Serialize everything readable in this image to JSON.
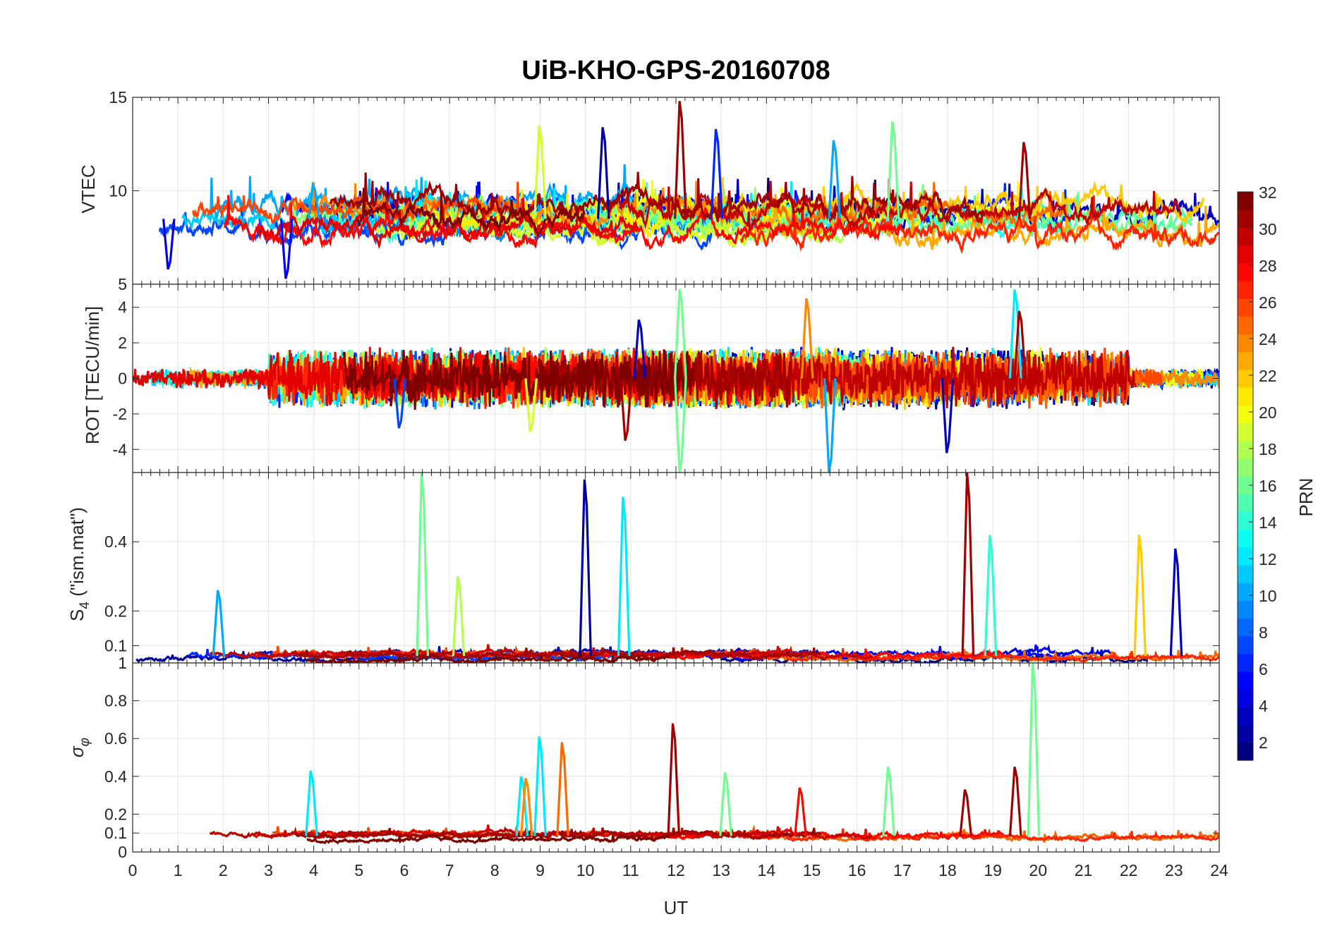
{
  "chart_data": {
    "type": "line",
    "title": "UiB-KHO-GPS-20160708",
    "xlabel": "UT",
    "xlim": [
      0,
      24
    ],
    "xticks": [
      "0",
      "1",
      "2",
      "3",
      "4",
      "5",
      "6",
      "7",
      "8",
      "9",
      "10",
      "11",
      "12",
      "13",
      "14",
      "15",
      "16",
      "17",
      "18",
      "19",
      "20",
      "21",
      "22",
      "23",
      "24"
    ],
    "grid": true,
    "series_note": "one trace per GPS satellite (PRN 1-32), coloured by PRN",
    "panels": [
      {
        "id": "vtec",
        "ylabel": "VTEC",
        "ylim": [
          5,
          15
        ],
        "yticks": [
          "5",
          "10",
          "15"
        ],
        "baseline_range": [
          7,
          10
        ],
        "spikes": [
          {
            "x": 12.1,
            "y": 14.8,
            "prn": 31
          },
          {
            "x": 10.4,
            "y": 13.4,
            "prn": 2
          },
          {
            "x": 16.8,
            "y": 13.7,
            "prn": 16
          },
          {
            "x": 9.0,
            "y": 13.5,
            "prn": 19
          },
          {
            "x": 12.9,
            "y": 13.3,
            "prn": 6
          },
          {
            "x": 19.7,
            "y": 12.6,
            "prn": 31
          },
          {
            "x": 15.5,
            "y": 12.7,
            "prn": 10
          },
          {
            "x": 0.8,
            "y": 5.8,
            "prn": 4
          },
          {
            "x": 3.4,
            "y": 5.3,
            "prn": 5
          },
          {
            "x": 4.0,
            "y": 10.3,
            "prn": 10
          }
        ]
      },
      {
        "id": "rot",
        "ylabel": "ROT [TECU/min]",
        "ylim": [
          -5.3,
          5.3
        ],
        "yticks": [
          "-4",
          "-2",
          "0",
          "2",
          "4"
        ],
        "baseline_range": [
          -1,
          1
        ],
        "spikes": [
          {
            "x": 12.1,
            "y": 5.0,
            "prn": 16
          },
          {
            "x": 12.1,
            "y": -5.3,
            "prn": 16
          },
          {
            "x": 19.5,
            "y": 5.0,
            "prn": 12
          },
          {
            "x": 15.4,
            "y": -5.3,
            "prn": 10
          },
          {
            "x": 14.9,
            "y": 4.5,
            "prn": 24
          },
          {
            "x": 19.6,
            "y": 3.8,
            "prn": 31
          },
          {
            "x": 18.0,
            "y": -4.2,
            "prn": 3
          },
          {
            "x": 10.9,
            "y": -3.5,
            "prn": 31
          },
          {
            "x": 11.2,
            "y": 3.3,
            "prn": 3
          },
          {
            "x": 8.8,
            "y": -3.0,
            "prn": 19
          },
          {
            "x": 5.9,
            "y": -2.8,
            "prn": 7
          }
        ]
      },
      {
        "id": "s4",
        "ylabel": "S4 (\"ism.mat\")",
        "ylim": [
          0.05,
          0.6
        ],
        "yticks": [
          "0.1",
          "0.2",
          "0.4"
        ],
        "baseline_range": [
          0.05,
          0.09
        ],
        "spikes": [
          {
            "x": 6.4,
            "y": 0.6,
            "prn": 16
          },
          {
            "x": 10.0,
            "y": 0.58,
            "prn": 2
          },
          {
            "x": 10.85,
            "y": 0.53,
            "prn": 12
          },
          {
            "x": 18.45,
            "y": 0.6,
            "prn": 31
          },
          {
            "x": 18.95,
            "y": 0.42,
            "prn": 14
          },
          {
            "x": 22.25,
            "y": 0.42,
            "prn": 22
          },
          {
            "x": 23.05,
            "y": 0.38,
            "prn": 3
          },
          {
            "x": 7.2,
            "y": 0.3,
            "prn": 18
          },
          {
            "x": 1.9,
            "y": 0.26,
            "prn": 10
          }
        ]
      },
      {
        "id": "sigma_phi",
        "ylabel": "σφ",
        "ylim": [
          0,
          1
        ],
        "yticks": [
          "0",
          "0.1",
          "0.2",
          "0.4",
          "0.6",
          "0.8",
          "1"
        ],
        "baseline_range": [
          0.05,
          0.12
        ],
        "spikes": [
          {
            "x": 19.9,
            "y": 1.0,
            "prn": 16
          },
          {
            "x": 11.95,
            "y": 0.68,
            "prn": 31
          },
          {
            "x": 9.0,
            "y": 0.61,
            "prn": 12
          },
          {
            "x": 9.5,
            "y": 0.58,
            "prn": 25
          },
          {
            "x": 19.5,
            "y": 0.45,
            "prn": 31
          },
          {
            "x": 16.7,
            "y": 0.45,
            "prn": 16
          },
          {
            "x": 3.95,
            "y": 0.43,
            "prn": 12
          },
          {
            "x": 13.1,
            "y": 0.42,
            "prn": 16
          },
          {
            "x": 8.6,
            "y": 0.4,
            "prn": 12
          },
          {
            "x": 8.7,
            "y": 0.39,
            "prn": 24
          },
          {
            "x": 14.75,
            "y": 0.34,
            "prn": 28
          },
          {
            "x": 18.4,
            "y": 0.33,
            "prn": 31
          }
        ]
      }
    ],
    "colorbar": {
      "label": "PRN",
      "range": [
        1,
        32
      ],
      "ticks": [
        "2",
        "4",
        "6",
        "8",
        "10",
        "12",
        "14",
        "16",
        "18",
        "20",
        "22",
        "24",
        "26",
        "28",
        "30",
        "32"
      ]
    }
  },
  "s4_label_parts": {
    "main": "S",
    "sub": "4",
    "rest": " (\"ism.mat\")"
  },
  "sigma_label_parts": {
    "main": "σ",
    "sub": "φ"
  },
  "colors": {
    "axis": "#262626",
    "grid": "#e6e6e6",
    "background": "#ffffff"
  }
}
